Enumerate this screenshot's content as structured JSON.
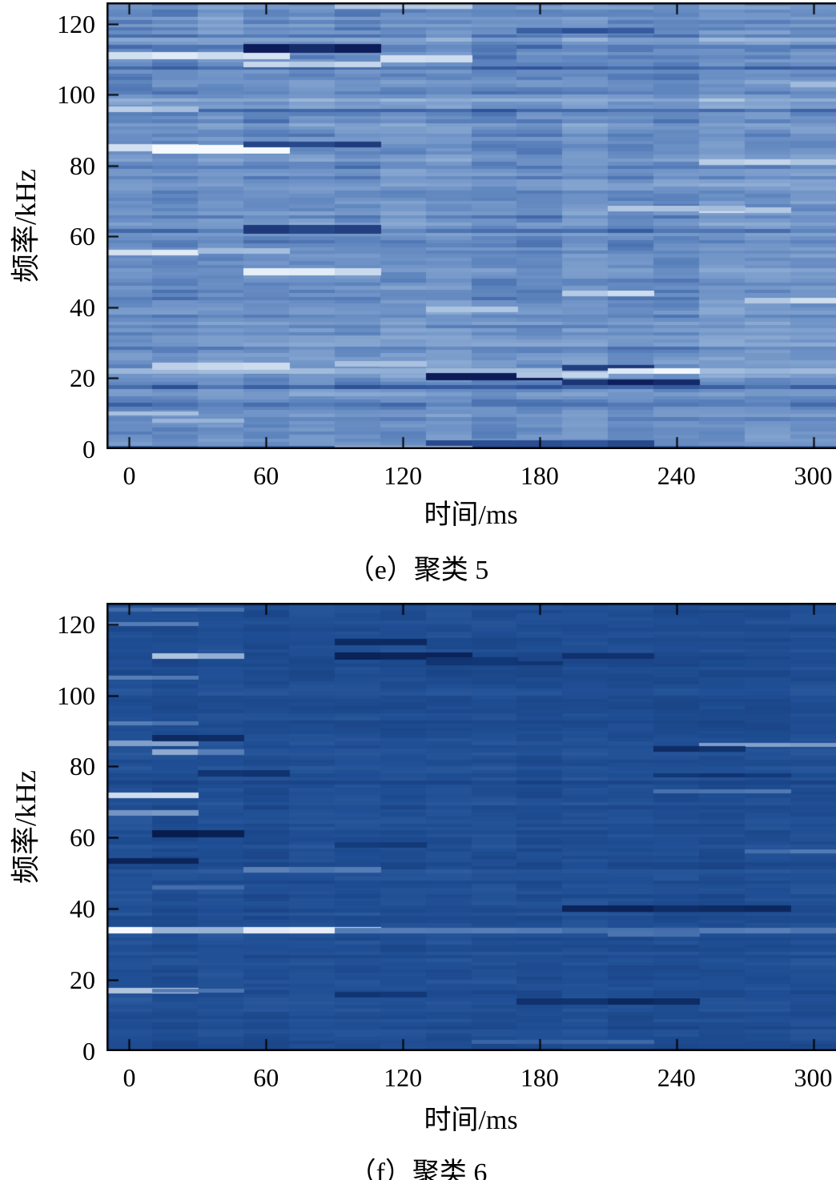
{
  "figure": {
    "background": "#ffffff",
    "text_color": "#000000",
    "axis_color": "#000000"
  },
  "chart_data": [
    {
      "id": "panel-e",
      "type": "heatmap",
      "caption": "（e）聚类 5",
      "xlabel": "时间/ms",
      "ylabel": "频率/kHz",
      "x_range": [
        -10,
        310
      ],
      "y_range": [
        0,
        126
      ],
      "x_ticks": [
        0,
        60,
        120,
        180,
        240,
        300
      ],
      "y_ticks": [
        0,
        20,
        40,
        60,
        80,
        100,
        120
      ],
      "grid": false,
      "legend": "none",
      "colormap": {
        "stops": [
          [
            0,
            "#0c1c58"
          ],
          [
            0.28,
            "#2f549a"
          ],
          [
            0.42,
            "#587fba"
          ],
          [
            0.5,
            "#6e92c6"
          ],
          [
            0.62,
            "#8aa9d2"
          ],
          [
            0.78,
            "#b8cce5"
          ],
          [
            0.9,
            "#dde9f5"
          ],
          [
            1,
            "#f6fafe"
          ]
        ]
      },
      "texture": {
        "seed": 42,
        "rows": 126,
        "cols": 16,
        "base": 0.5,
        "row_sd": 0.07,
        "cell_sd": 0.055,
        "col_sd": 0.03,
        "spike_prob": 0.12,
        "spike_mult": 2.6
      },
      "features": [
        [
          85,
          -10,
          25,
          0.4,
          2
        ],
        [
          84.5,
          25,
          58,
          0.52,
          2.5
        ],
        [
          111,
          -10,
          15,
          0.35,
          2
        ],
        [
          111,
          35,
          60,
          0.42,
          2
        ],
        [
          110,
          110,
          135,
          0.32,
          2
        ],
        [
          113,
          65,
          95,
          -0.48,
          2.5
        ],
        [
          108.5,
          65,
          95,
          0.28,
          1.5
        ],
        [
          86,
          60,
          95,
          -0.32,
          1.5
        ],
        [
          62,
          65,
          95,
          -0.35,
          2.5
        ],
        [
          50,
          65,
          95,
          0.38,
          2
        ],
        [
          55.5,
          -10,
          15,
          0.35,
          1.5
        ],
        [
          56,
          30,
          60,
          0.22,
          1.5
        ],
        [
          22,
          -10,
          310,
          0.18,
          1.5
        ],
        [
          23.5,
          25,
          60,
          0.35,
          2
        ],
        [
          24,
          95,
          130,
          0.28,
          1.5
        ],
        [
          20.5,
          145,
          175,
          -0.58,
          2
        ],
        [
          21,
          175,
          210,
          0.3,
          1.5
        ],
        [
          23,
          190,
          215,
          -0.35,
          1.5
        ],
        [
          22,
          210,
          237,
          0.48,
          1.5
        ],
        [
          19,
          205,
          240,
          -0.42,
          1.5
        ],
        [
          44,
          205,
          230,
          0.32,
          1.5
        ],
        [
          39.5,
          130,
          160,
          0.26,
          1.5
        ],
        [
          67.5,
          255,
          290,
          0.32,
          1.5
        ],
        [
          81,
          260,
          292,
          0.3,
          1.5
        ],
        [
          68,
          228,
          252,
          0.22,
          1.5
        ],
        [
          42,
          288,
          310,
          0.3,
          1.5
        ],
        [
          125,
          95,
          135,
          0.3,
          1.5
        ],
        [
          118,
          185,
          215,
          -0.22,
          1.5
        ],
        [
          1.5,
          140,
          230,
          -0.25,
          2
        ],
        [
          0.5,
          95,
          135,
          0.2,
          1
        ],
        [
          96,
          -10,
          15,
          0.25,
          1.5
        ],
        [
          103,
          290,
          310,
          0.22,
          1.5
        ],
        [
          10,
          -10,
          15,
          0.22,
          1.2
        ],
        [
          8,
          15,
          40,
          0.2,
          1.2
        ]
      ]
    },
    {
      "id": "panel-f",
      "type": "heatmap",
      "caption": "（f）聚类 6",
      "xlabel": "时间/ms",
      "ylabel": "频率/kHz",
      "x_range": [
        -10,
        310
      ],
      "y_range": [
        0,
        126
      ],
      "x_ticks": [
        0,
        60,
        120,
        180,
        240,
        300
      ],
      "y_ticks": [
        0,
        20,
        40,
        60,
        80,
        100,
        120
      ],
      "grid": false,
      "legend": "none",
      "colormap": {
        "stops": [
          [
            0,
            "#071a4a"
          ],
          [
            0.3,
            "#123776"
          ],
          [
            0.45,
            "#1b4689"
          ],
          [
            0.5,
            "#1f4e94"
          ],
          [
            0.6,
            "#2f5da0"
          ],
          [
            0.75,
            "#5e84b9"
          ],
          [
            0.9,
            "#b6c9e2"
          ],
          [
            1,
            "#f6f9fd"
          ]
        ]
      },
      "texture": {
        "seed": 1337,
        "rows": 126,
        "cols": 16,
        "base": 0.5,
        "row_sd": 0.035,
        "cell_sd": 0.03,
        "col_sd": 0.015,
        "spike_prob": 0.08,
        "spike_mult": 2.2
      },
      "features": [
        [
          34,
          -10,
          12,
          0.62,
          1.8
        ],
        [
          34,
          12,
          92,
          0.42,
          1.8
        ],
        [
          34,
          92,
          310,
          0.2,
          1.5
        ],
        [
          33,
          213,
          248,
          0.16,
          1.5
        ],
        [
          17,
          -10,
          12,
          0.45,
          1.5
        ],
        [
          17,
          12,
          35,
          0.2,
          1.2
        ],
        [
          111,
          15,
          50,
          0.33,
          1.5
        ],
        [
          115,
          92,
          113,
          -0.3,
          1.8
        ],
        [
          111,
          105,
          137,
          -0.48,
          2
        ],
        [
          110,
          137,
          168,
          -0.2,
          1.5
        ],
        [
          109,
          148,
          178,
          -0.22,
          1.2
        ],
        [
          111,
          195,
          228,
          -0.24,
          1.5
        ],
        [
          86.5,
          -10,
          15,
          0.3,
          1.5
        ],
        [
          88,
          13,
          42,
          -0.3,
          1.8
        ],
        [
          84,
          13,
          45,
          0.28,
          1.5
        ],
        [
          86,
          262,
          310,
          0.33,
          1.2
        ],
        [
          72,
          -10,
          12,
          0.38,
          1.5
        ],
        [
          67,
          -10,
          22,
          0.32,
          1.5
        ],
        [
          61,
          13,
          45,
          -0.45,
          2
        ],
        [
          53.5,
          -10,
          12,
          -0.42,
          1.5
        ],
        [
          78,
          40,
          68,
          -0.26,
          1.8
        ],
        [
          77.5,
          243,
          285,
          -0.22,
          1.2
        ],
        [
          85,
          233,
          262,
          -0.3,
          1.5
        ],
        [
          51,
          63,
          92,
          0.24,
          1.5
        ],
        [
          56,
          272,
          300,
          0.2,
          1.2
        ],
        [
          40,
          208,
          240,
          -0.34,
          1.8
        ],
        [
          40,
          248,
          273,
          -0.36,
          1.8
        ],
        [
          14,
          188,
          235,
          -0.3,
          1.8
        ],
        [
          16,
          103,
          130,
          -0.2,
          1.5
        ],
        [
          2.5,
          158,
          212,
          0.14,
          1.2
        ],
        [
          124,
          -10,
          42,
          0.18,
          1.2
        ],
        [
          120,
          -10,
          12,
          0.2,
          1.2
        ],
        [
          105,
          -10,
          12,
          0.25,
          1.2
        ],
        [
          92,
          -10,
          12,
          0.2,
          1.2
        ],
        [
          73,
          248,
          272,
          0.18,
          1.2
        ],
        [
          58,
          100,
          130,
          -0.18,
          1.5
        ],
        [
          46,
          13,
          40,
          0.18,
          1.2
        ]
      ]
    }
  ]
}
